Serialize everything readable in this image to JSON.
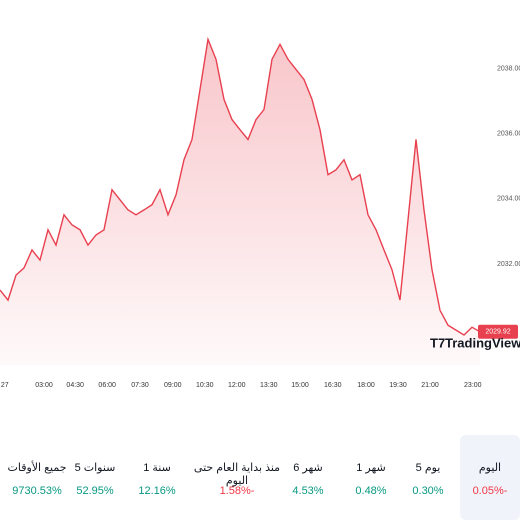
{
  "chart_data": {
    "type": "area",
    "color": "#e8404f",
    "values": [
      2031.2,
      2030.89,
      2031.66,
      2031.88,
      2032.43,
      2032.12,
      2033.05,
      2032.58,
      2033.51,
      2033.2,
      2033.05,
      2032.58,
      2032.89,
      2033.05,
      2034.28,
      2033.97,
      2033.66,
      2033.51,
      2033.66,
      2033.82,
      2034.28,
      2033.51,
      2034.12,
      2035.2,
      2035.82,
      2037.35,
      2038.89,
      2038.28,
      2037.05,
      2036.43,
      2036.12,
      2035.82,
      2036.43,
      2036.74,
      2038.28,
      2038.74,
      2038.28,
      2037.97,
      2037.66,
      2037.05,
      2036.12,
      2034.74,
      2034.89,
      2035.2,
      2034.58,
      2034.74,
      2033.51,
      2033.05,
      2032.43,
      2031.82,
      2030.89,
      2033.35,
      2035.82,
      2033.66,
      2031.82,
      2030.58,
      2030.12,
      2029.97,
      2029.82,
      2030.06,
      2029.92
    ],
    "last_price": 2029.92,
    "xlim": [
      0,
      61
    ],
    "xticks": [
      {
        "value": 0.6,
        "label": "27"
      },
      {
        "value": 5.5,
        "label": "03:00"
      },
      {
        "value": 9.4,
        "label": "04:30"
      },
      {
        "value": 13.4,
        "label": "06:00"
      },
      {
        "value": 17.5,
        "label": "07:30"
      },
      {
        "value": 21.6,
        "label": "09:00"
      },
      {
        "value": 25.6,
        "label": "10:30"
      },
      {
        "value": 29.6,
        "label": "12:00"
      },
      {
        "value": 33.6,
        "label": "13:30"
      },
      {
        "value": 37.5,
        "label": "15:00"
      },
      {
        "value": 41.6,
        "label": "16:30"
      },
      {
        "value": 45.75,
        "label": "18:00"
      },
      {
        "value": 49.75,
        "label": "19:30"
      },
      {
        "value": 53.75,
        "label": "21:00"
      },
      {
        "value": 59.1,
        "label": "23:00"
      }
    ],
    "ylim": [
      2028.9,
      2040.1
    ],
    "yticks": [
      {
        "value": 2032,
        "label": "2032.00"
      },
      {
        "value": 2034,
        "label": "2034.00"
      },
      {
        "value": 2036,
        "label": "2036.00"
      },
      {
        "value": 2038,
        "label": "2038.00"
      }
    ],
    "watermark": "TradingView"
  },
  "periods": [
    {
      "label": "اليوم",
      "change": "0.05%-"
    },
    {
      "label": "5 يوم",
      "change": "0.30%"
    },
    {
      "label": "1 شهر",
      "change": "0.48%"
    },
    {
      "label": "6 شهر",
      "change": "4.53%"
    },
    {
      "label": "منذ بداية العام حتى اليوم",
      "change": "1.58%-"
    },
    {
      "label": "1 سنة",
      "change": "12.16%"
    },
    {
      "label": "5 سنوات",
      "change": "52.95%"
    },
    {
      "label": "جميع الأوقات",
      "change": "9730.53%"
    }
  ],
  "selected_period": 0,
  "up_color": "#089981",
  "down_color": "#f23645"
}
